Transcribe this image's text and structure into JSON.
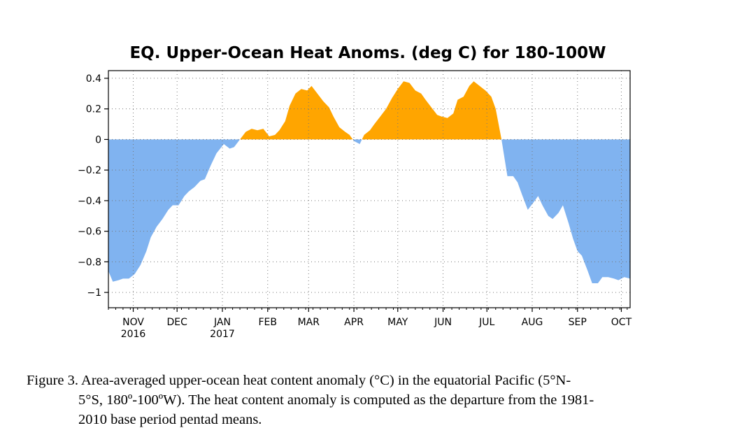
{
  "chart_data": {
    "type": "area",
    "title": "EQ. Upper-Ocean Heat Anoms. (deg C) for 180-100W",
    "ylim": [
      -1.1,
      0.45
    ],
    "yticks": [
      0.4,
      0.2,
      0,
      -0.2,
      -0.4,
      -0.6,
      -0.8,
      -1
    ],
    "ytick_labels": [
      "0.4",
      "0.2",
      "0",
      "-0.2",
      "-0.4",
      "-0.6",
      "-0.8",
      "-1"
    ],
    "xlim": [
      "2016-10-15",
      "2017-10-07"
    ],
    "months": [
      {
        "date": "2016-11-01",
        "label": "NOV",
        "year": "2016"
      },
      {
        "date": "2016-12-01",
        "label": "DEC",
        "year": ""
      },
      {
        "date": "2017-01-01",
        "label": "JAN",
        "year": "2017"
      },
      {
        "date": "2017-02-01",
        "label": "FEB",
        "year": ""
      },
      {
        "date": "2017-03-01",
        "label": "MAR",
        "year": ""
      },
      {
        "date": "2017-04-01",
        "label": "APR",
        "year": ""
      },
      {
        "date": "2017-05-01",
        "label": "MAY",
        "year": ""
      },
      {
        "date": "2017-06-01",
        "label": "JUN",
        "year": ""
      },
      {
        "date": "2017-07-01",
        "label": "JUL",
        "year": ""
      },
      {
        "date": "2017-08-01",
        "label": "AUG",
        "year": ""
      },
      {
        "date": "2017-09-01",
        "label": "SEP",
        "year": ""
      },
      {
        "date": "2017-10-01",
        "label": "OCT",
        "year": ""
      }
    ],
    "colors": {
      "positive": "#ffa500",
      "negative": "#80b3f0"
    },
    "grid": true,
    "x": [
      "2016-10-15",
      "2016-10-18",
      "2016-10-22",
      "2016-10-25",
      "2016-10-29",
      "2016-11-02",
      "2016-11-06",
      "2016-11-10",
      "2016-11-13",
      "2016-11-17",
      "2016-11-21",
      "2016-11-25",
      "2016-11-28",
      "2016-12-02",
      "2016-12-06",
      "2016-12-09",
      "2016-12-13",
      "2016-12-17",
      "2016-12-20",
      "2016-12-24",
      "2016-12-28",
      "2017-01-02",
      "2017-01-06",
      "2017-01-09",
      "2017-01-13",
      "2017-01-17",
      "2017-01-21",
      "2017-01-25",
      "2017-01-29",
      "2017-02-02",
      "2017-02-06",
      "2017-02-09",
      "2017-02-13",
      "2017-02-16",
      "2017-02-20",
      "2017-02-24",
      "2017-02-28",
      "2017-03-03",
      "2017-03-07",
      "2017-03-11",
      "2017-03-15",
      "2017-03-18",
      "2017-03-22",
      "2017-03-26",
      "2017-03-29",
      "2017-04-01",
      "2017-04-05",
      "2017-04-08",
      "2017-04-12",
      "2017-04-15",
      "2017-04-19",
      "2017-04-23",
      "2017-04-27",
      "2017-05-01",
      "2017-05-05",
      "2017-05-09",
      "2017-05-13",
      "2017-05-17",
      "2017-05-20",
      "2017-05-24",
      "2017-05-28",
      "2017-05-31",
      "2017-06-04",
      "2017-06-08",
      "2017-06-11",
      "2017-06-15",
      "2017-06-19",
      "2017-06-22",
      "2017-06-26",
      "2017-06-30",
      "2017-07-04",
      "2017-07-07",
      "2017-07-11",
      "2017-07-15",
      "2017-07-19",
      "2017-07-22",
      "2017-07-25",
      "2017-07-29",
      "2017-08-02",
      "2017-08-05",
      "2017-08-08",
      "2017-08-12",
      "2017-08-15",
      "2017-08-19",
      "2017-08-22",
      "2017-08-26",
      "2017-08-29",
      "2017-09-01",
      "2017-09-04",
      "2017-09-08",
      "2017-09-11",
      "2017-09-15",
      "2017-09-18",
      "2017-09-22",
      "2017-09-26",
      "2017-09-29",
      "2017-10-03",
      "2017-10-07"
    ],
    "values": [
      -0.86,
      -0.93,
      -0.92,
      -0.91,
      -0.91,
      -0.88,
      -0.82,
      -0.73,
      -0.64,
      -0.57,
      -0.52,
      -0.46,
      -0.43,
      -0.43,
      -0.37,
      -0.34,
      -0.31,
      -0.27,
      -0.26,
      -0.17,
      -0.09,
      -0.03,
      -0.06,
      -0.05,
      0.0,
      0.05,
      0.07,
      0.06,
      0.07,
      0.02,
      0.03,
      0.06,
      0.12,
      0.22,
      0.3,
      0.33,
      0.32,
      0.35,
      0.3,
      0.25,
      0.21,
      0.15,
      0.08,
      0.05,
      0.03,
      -0.01,
      -0.03,
      0.03,
      0.06,
      0.1,
      0.15,
      0.2,
      0.27,
      0.33,
      0.38,
      0.37,
      0.32,
      0.3,
      0.26,
      0.21,
      0.16,
      0.15,
      0.14,
      0.17,
      0.26,
      0.28,
      0.35,
      0.38,
      0.35,
      0.32,
      0.28,
      0.2,
      0.0,
      -0.24,
      -0.24,
      -0.28,
      -0.36,
      -0.46,
      -0.41,
      -0.37,
      -0.43,
      -0.5,
      -0.52,
      -0.48,
      -0.43,
      -0.55,
      -0.65,
      -0.73,
      -0.76,
      -0.86,
      -0.94,
      -0.94,
      -0.9,
      -0.9,
      -0.91,
      -0.92,
      -0.9,
      -0.91
    ]
  },
  "caption": {
    "line1": "Figure 3. Area-averaged upper-ocean heat content anomaly (°C) in the equatorial Pacific (5°N-",
    "line2": "5°S, 180º-100ºW). The heat content anomaly is computed as the departure from the 1981-",
    "line3": "2010 base period pentad means."
  }
}
